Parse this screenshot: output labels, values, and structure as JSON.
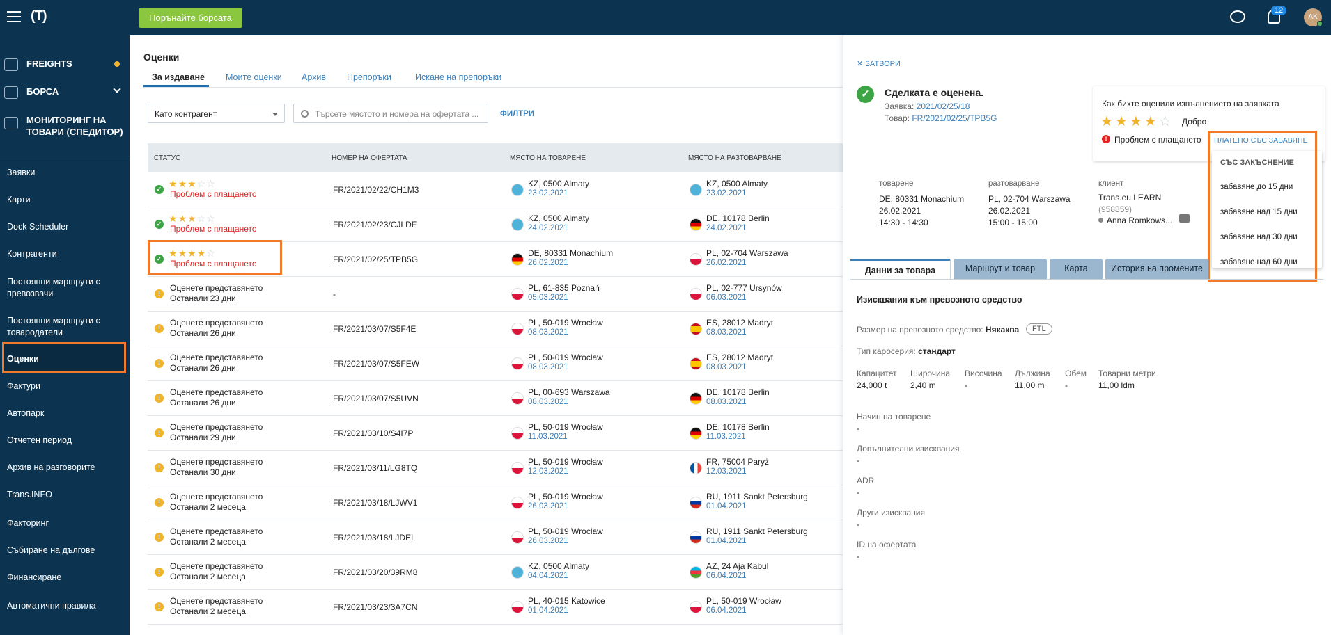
{
  "header": {
    "logo": "(T)",
    "buy_button": "Порънайте борсата",
    "notifications_count": "12",
    "avatar": "AK"
  },
  "sidebar": {
    "main_items": [
      {
        "label": "FREIGHTS",
        "icon": "truck-icon"
      },
      {
        "label": "БОРСА",
        "icon": "box-icon"
      },
      {
        "label": "МОНИТОРИНГ НА ТОВАРИ (СПЕДИТОР)",
        "icon": "satellite-icon"
      }
    ],
    "items": [
      "Заявки",
      "Карти",
      "Dock Scheduler",
      "Контрагенти",
      "Постоянни маршрути с превозвачи",
      "Постоянни маршрути с товародатели",
      "Оценки",
      "Фактури",
      "Автопарк",
      "Отчетен период",
      "Архив на разговорите",
      "Trans.INFO",
      "Факторинг",
      "Събиране на дългове",
      "Финансиране",
      "Автоматични правила"
    ]
  },
  "page": {
    "title": "Оценки",
    "tabs": [
      "За издаване",
      "Моите оценки",
      "Архив",
      "Препоръки",
      "Искане на препоръки"
    ],
    "contractor_select": "Като контрагент",
    "search_placeholder": "Търсете мястото и номера на офертата ...",
    "filters": "ФИЛТРИ"
  },
  "table": {
    "columns": [
      "СТАТУС",
      "НОМЕР НА ОФЕРТАТА",
      "МЯСТО НА ТОВАРЕНЕ",
      "МЯСТО НА РАЗТОВАРВАНЕ"
    ],
    "rows": [
      {
        "type": "rated",
        "stars": 3,
        "s1": "",
        "s2": "Проблем с плащането",
        "num": "FR/2021/02/22/CH1M3",
        "l1": "KZ, 0500 Almaty",
        "d1": "23.02.2021",
        "f1": "kz",
        "l2": "KZ, 0500 Almaty",
        "d2": "23.02.2021",
        "f2": "kz"
      },
      {
        "type": "rated",
        "stars": 3,
        "s1": "",
        "s2": "Проблем с плащането",
        "num": "FR/2021/02/23/CJLDF",
        "l1": "KZ, 0500 Almaty",
        "d1": "24.02.2021",
        "f1": "kz",
        "l2": "DE, 10178 Berlin",
        "d2": "24.02.2021",
        "f2": "de"
      },
      {
        "type": "rated",
        "stars": 4,
        "s1": "",
        "s2": "Проблем с плащането",
        "num": "FR/2021/02/25/TPB5G",
        "l1": "DE, 80331 Monachium",
        "d1": "26.02.2021",
        "f1": "de",
        "l2": "PL, 02-704 Warszawa",
        "d2": "26.02.2021",
        "f2": "pl"
      },
      {
        "type": "pending",
        "s1": "Оценете представянето",
        "s2": "Останали 23 дни",
        "num": "-",
        "l1": "PL, 61-835 Poznań",
        "d1": "05.03.2021",
        "f1": "pl",
        "l2": "PL, 02-777 Ursynów",
        "d2": "06.03.2021",
        "f2": "pl"
      },
      {
        "type": "pending",
        "s1": "Оценете представянето",
        "s2": "Останали 26 дни",
        "num": "FR/2021/03/07/S5F4E",
        "l1": "PL, 50-019 Wrocław",
        "d1": "08.03.2021",
        "f1": "pl",
        "l2": "ES, 28012 Madryt",
        "d2": "08.03.2021",
        "f2": "es"
      },
      {
        "type": "pending",
        "s1": "Оценете представянето",
        "s2": "Останали 26 дни",
        "num": "FR/2021/03/07/S5FEW",
        "l1": "PL, 50-019 Wrocław",
        "d1": "08.03.2021",
        "f1": "pl",
        "l2": "ES, 28012 Madryt",
        "d2": "08.03.2021",
        "f2": "es"
      },
      {
        "type": "pending",
        "s1": "Оценете представянето",
        "s2": "Останали 26 дни",
        "num": "FR/2021/03/07/S5UVN",
        "l1": "PL, 00-693 Warszawa",
        "d1": "08.03.2021",
        "f1": "pl",
        "l2": "DE, 10178 Berlin",
        "d2": "08.03.2021",
        "f2": "de"
      },
      {
        "type": "pending",
        "s1": "Оценете представянето",
        "s2": "Останали 29 дни",
        "num": "FR/2021/03/10/S4I7P",
        "l1": "PL, 50-019 Wrocław",
        "d1": "11.03.2021",
        "f1": "pl",
        "l2": "DE, 10178 Berlin",
        "d2": "11.03.2021",
        "f2": "de"
      },
      {
        "type": "pending",
        "s1": "Оценете представянето",
        "s2": "Останали 30 дни",
        "num": "FR/2021/03/11/LG8TQ",
        "l1": "PL, 50-019 Wrocław",
        "d1": "12.03.2021",
        "f1": "pl",
        "l2": "FR, 75004 Paryż",
        "d2": "12.03.2021",
        "f2": "fr"
      },
      {
        "type": "pending",
        "s1": "Оценете представянето",
        "s2": "Останали 2 месеца",
        "num": "FR/2021/03/18/LJWV1",
        "l1": "PL, 50-019 Wrocław",
        "d1": "26.03.2021",
        "f1": "pl",
        "l2": "RU, 1911 Sankt Petersburg",
        "d2": "01.04.2021",
        "f2": "ru"
      },
      {
        "type": "pending",
        "s1": "Оценете представянето",
        "s2": "Останали 2 месеца",
        "num": "FR/2021/03/18/LJDEL",
        "l1": "PL, 50-019 Wrocław",
        "d1": "26.03.2021",
        "f1": "pl",
        "l2": "RU, 1911 Sankt Petersburg",
        "d2": "01.04.2021",
        "f2": "ru"
      },
      {
        "type": "pending",
        "s1": "Оценете представянето",
        "s2": "Останали 2 месеца",
        "num": "FR/2021/03/20/39RM8",
        "l1": "KZ, 0500 Almaty",
        "d1": "04.04.2021",
        "f1": "kz",
        "l2": "AZ, 24 Aja Kabul",
        "d2": "06.04.2021",
        "f2": "az"
      },
      {
        "type": "pending",
        "s1": "Оценете представянето",
        "s2": "Останали 2 месеца",
        "num": "FR/2021/03/23/3A7CN",
        "l1": "PL, 40-015 Katowice",
        "d1": "01.04.2021",
        "f1": "pl",
        "l2": "PL, 50-019 Wrocław",
        "d2": "06.04.2021",
        "f2": "pl"
      }
    ]
  },
  "panel": {
    "close": "ЗАТВОРИ",
    "deal_title": "Сделката е оценена.",
    "order_label": "Заявка:",
    "order_value": "2021/02/25/18",
    "cargo_label": "Товар:",
    "cargo_value": "FR/2021/02/25/TPB5G",
    "rating_question": "Как бихте оценили изпълнението на заявката",
    "rating_stars": 4,
    "rating_word": "Добро",
    "payment_problem": "Проблем с плащането",
    "late_link": "ПЛАТЕНО СЪС ЗАБАВЯНЕ",
    "dropdown": {
      "header": "СЪС ЗАКЪСНЕНИЕ",
      "items": [
        "забавяне до 15 дни",
        "забавяне над 15 дни",
        "забавяне над 30 дни",
        "забавяне над 60 дни"
      ]
    },
    "loading": {
      "label": "товарене",
      "place": "DE, 80331 Monachium",
      "date": "26.02.2021",
      "time": "14:30 - 14:30"
    },
    "unloading": {
      "label": "разтоварване",
      "place": "PL, 02-704 Warszawa",
      "date": "26.02.2021",
      "time": "15:00 - 15:00"
    },
    "client": {
      "label": "клиент",
      "name": "Trans.eu LEARN",
      "id": "(958859)",
      "person": "Anna Romkows..."
    },
    "tabs": [
      "Данни за товара",
      "Маршрут и товар",
      "Карта",
      "История на промените"
    ],
    "vehicle": {
      "title": "Изисквания към превозното средство",
      "size_label": "Размер на превозното средство:",
      "size_value": "Някаква",
      "ftl": "FTL",
      "body_label": "Тип каросерия:",
      "body_value": "стандарт",
      "caps": [
        {
          "l": "Капацитет",
          "v": "24,000 t"
        },
        {
          "l": "Широчина",
          "v": "2,40 m"
        },
        {
          "l": "Височина",
          "v": "-"
        },
        {
          "l": "Дължина",
          "v": "11,00 m"
        },
        {
          "l": "Обем",
          "v": "-"
        },
        {
          "l": "Товарни метри",
          "v": "11,00 ldm"
        }
      ],
      "details": [
        {
          "l": "Начин на товарене",
          "v": "-"
        },
        {
          "l": "Допълнителни изисквания",
          "v": "-"
        },
        {
          "l": "ADR",
          "v": "-"
        },
        {
          "l": "Други изисквания",
          "v": "-"
        },
        {
          "l": "ID на офертата",
          "v": "-"
        }
      ]
    }
  },
  "colors": {
    "nav": "#0c3450",
    "accent": "#8bc63f",
    "highlight": "#f07a2a",
    "link": "#3b7fb8"
  }
}
